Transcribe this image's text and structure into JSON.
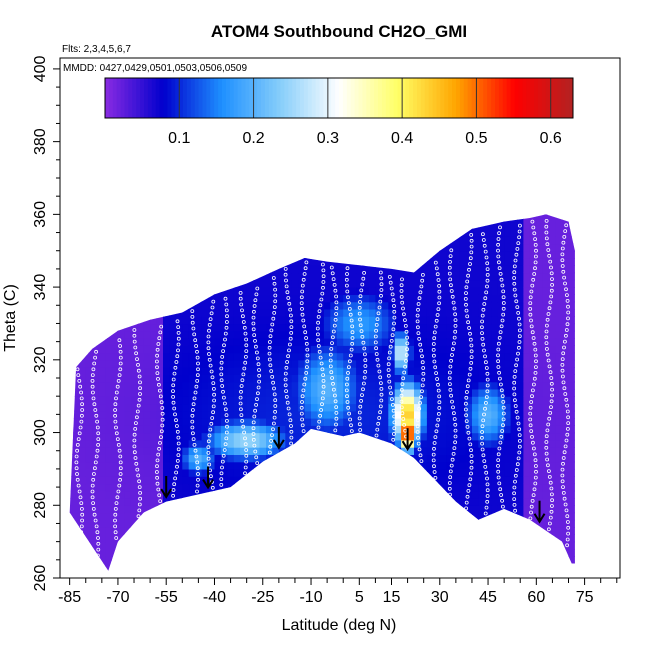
{
  "chart_data": {
    "type": "heatmap",
    "title": "ATOM4 Southbound CH2O_GMI",
    "annotations": {
      "flights": "Flts: 2,3,4,5,6,7",
      "dates": "MMDD: 0427,0429,0501,0503,0506,0509"
    },
    "xlabel": "Latitude (deg N)",
    "ylabel": "Theta (C)",
    "xlim": [
      -88,
      86
    ],
    "ylim": [
      260,
      403
    ],
    "x_ticks": [
      -85,
      -70,
      -55,
      -40,
      -25,
      -10,
      5,
      15,
      30,
      45,
      60,
      75
    ],
    "y_ticks": [
      260,
      280,
      300,
      320,
      340,
      360,
      380,
      400
    ],
    "colorbar": {
      "range": [
        0,
        0.63
      ],
      "ticks": [
        0.1,
        0.2,
        0.3,
        0.4,
        0.5,
        0.6
      ],
      "colors": [
        "#8a2be2",
        "#0000cd",
        "#1e90ff",
        "#87cefa",
        "#ffffff",
        "#ffff66",
        "#ffa500",
        "#ff0000",
        "#b22222"
      ]
    },
    "arrows_lat": [
      -55,
      -42,
      -20,
      20,
      61
    ],
    "domain": {
      "bottom": [
        [
          -73,
          262
        ],
        [
          -70,
          270
        ],
        [
          -62,
          278
        ],
        [
          -55,
          281
        ],
        [
          -45,
          283
        ],
        [
          -35,
          285
        ],
        [
          -25,
          292
        ],
        [
          -15,
          297
        ],
        [
          -10,
          301
        ],
        [
          0,
          299
        ],
        [
          5,
          300
        ],
        [
          15,
          297
        ],
        [
          22,
          293
        ],
        [
          35,
          281
        ],
        [
          42,
          276
        ],
        [
          50,
          279
        ],
        [
          58,
          276
        ],
        [
          68,
          270
        ],
        [
          71,
          264
        ]
      ],
      "top": [
        [
          -85,
          278
        ],
        [
          -83,
          318
        ],
        [
          -78,
          323
        ],
        [
          -70,
          328
        ],
        [
          -60,
          331
        ],
        [
          -50,
          333
        ],
        [
          -40,
          338
        ],
        [
          -30,
          341
        ],
        [
          -20,
          345
        ],
        [
          -12,
          348
        ],
        [
          -5,
          347
        ],
        [
          5,
          346
        ],
        [
          15,
          345
        ],
        [
          22,
          344
        ],
        [
          30,
          350
        ],
        [
          40,
          356
        ],
        [
          50,
          358
        ],
        [
          58,
          359
        ],
        [
          63,
          360
        ],
        [
          70,
          358
        ],
        [
          72,
          350
        ],
        [
          72,
          264
        ]
      ]
    },
    "hotspots": [
      {
        "lat": 20,
        "theta": 300,
        "value": 0.58,
        "rx": 3,
        "ry": 5
      },
      {
        "lat": 20,
        "theta": 305,
        "value": 0.45,
        "rx": 5,
        "ry": 9
      },
      {
        "lat": 18,
        "theta": 322,
        "value": 0.3,
        "rx": 3,
        "ry": 6
      },
      {
        "lat": -30,
        "theta": 298,
        "value": 0.25,
        "rx": 14,
        "ry": 6
      },
      {
        "lat": -5,
        "theta": 312,
        "value": 0.2,
        "rx": 12,
        "ry": 14
      },
      {
        "lat": 45,
        "theta": 305,
        "value": 0.2,
        "rx": 8,
        "ry": 10
      },
      {
        "lat": -45,
        "theta": 293,
        "value": 0.2,
        "rx": 6,
        "ry": 5
      },
      {
        "lat": 5,
        "theta": 330,
        "value": 0.17,
        "rx": 14,
        "ry": 10
      }
    ],
    "flight_tracks_lat": [
      -82,
      -77,
      -70,
      -64,
      -57,
      -52,
      -46,
      -41,
      -37,
      -31,
      -27,
      -22,
      -17,
      -12,
      -7,
      -3,
      2,
      6,
      11,
      15,
      19,
      24,
      29,
      34,
      39,
      44,
      49,
      54,
      59,
      64,
      69
    ]
  }
}
